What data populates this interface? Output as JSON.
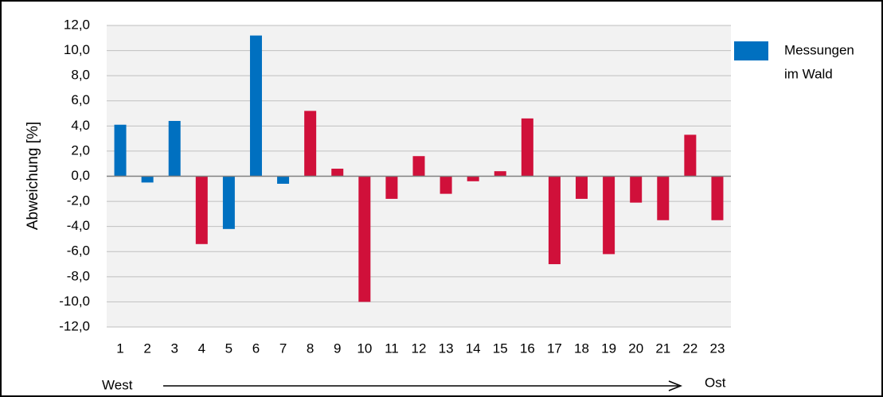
{
  "chart_data": {
    "type": "bar",
    "ylabel": "Abweichung [%]",
    "categories": [
      "1",
      "2",
      "3",
      "4",
      "5",
      "6",
      "7",
      "8",
      "9",
      "10",
      "11",
      "12",
      "13",
      "14",
      "15",
      "16",
      "17",
      "18",
      "19",
      "20",
      "21",
      "22",
      "23"
    ],
    "values": [
      4.1,
      -0.5,
      4.4,
      -5.4,
      -4.2,
      11.2,
      -0.6,
      5.2,
      0.6,
      -10.0,
      -1.8,
      1.6,
      -1.4,
      -0.4,
      0.4,
      4.6,
      -7.0,
      -1.8,
      -6.2,
      -2.1,
      -3.5,
      3.3,
      -3.5
    ],
    "colors": [
      "#0070c0",
      "#0070c0",
      "#0070c0",
      "#d0103a",
      "#0070c0",
      "#0070c0",
      "#0070c0",
      "#d0103a",
      "#d0103a",
      "#d0103a",
      "#d0103a",
      "#d0103a",
      "#d0103a",
      "#d0103a",
      "#d0103a",
      "#d0103a",
      "#d0103a",
      "#d0103a",
      "#d0103a",
      "#d0103a",
      "#d0103a",
      "#d0103a",
      "#d0103a"
    ],
    "ylim": [
      -12,
      12
    ],
    "yticks": [
      {
        "value": -12,
        "label": "-12,0"
      },
      {
        "value": -10,
        "label": "-10,0"
      },
      {
        "value": -8,
        "label": "-8,0"
      },
      {
        "value": -6,
        "label": "-6,0"
      },
      {
        "value": -4,
        "label": "-4,0"
      },
      {
        "value": -2,
        "label": "-2,0"
      },
      {
        "value": 0,
        "label": "0,0"
      },
      {
        "value": 2,
        "label": "2,0"
      },
      {
        "value": 4,
        "label": "4,0"
      },
      {
        "value": 6,
        "label": "6,0"
      },
      {
        "value": 8,
        "label": "8,0"
      },
      {
        "value": 10,
        "label": "10,0"
      },
      {
        "value": 12,
        "label": "12,0"
      }
    ],
    "grid": true,
    "legend": {
      "lines": [
        "Messungen",
        "im Wald"
      ],
      "color": "#0070c0",
      "position": "right"
    },
    "x_annotations": {
      "left": "West",
      "right": "Ost"
    }
  }
}
